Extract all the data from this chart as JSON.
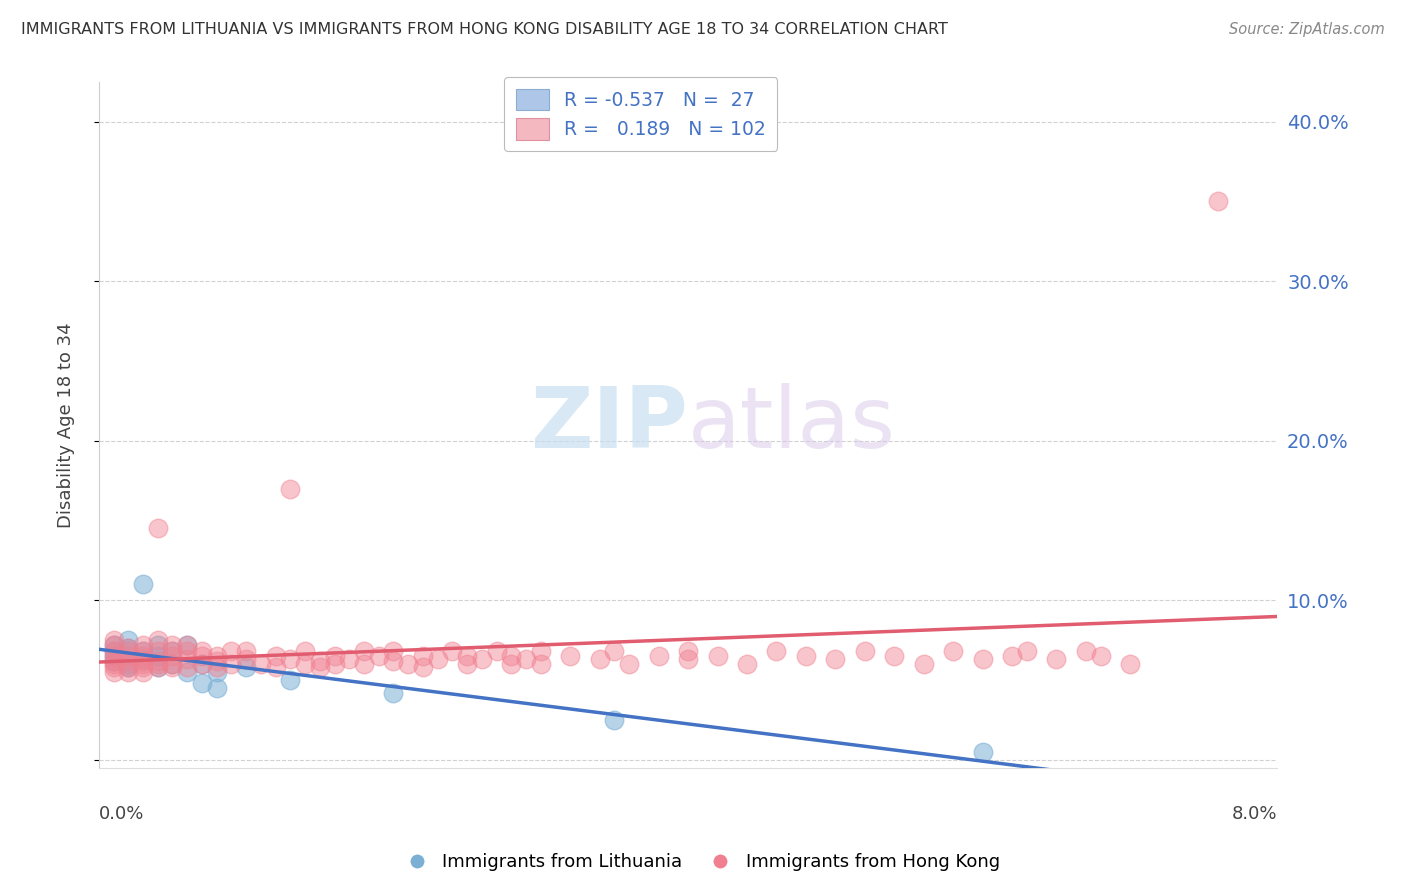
{
  "title": "IMMIGRANTS FROM LITHUANIA VS IMMIGRANTS FROM HONG KONG DISABILITY AGE 18 TO 34 CORRELATION CHART",
  "source": "Source: ZipAtlas.com",
  "ylabel": "Disability Age 18 to 34",
  "xlim": [
    0.0,
    0.08
  ],
  "ylim": [
    -0.005,
    0.425
  ],
  "yticks": [
    0.0,
    0.1,
    0.2,
    0.3,
    0.4
  ],
  "ytick_labels": [
    "",
    "10.0%",
    "20.0%",
    "30.0%",
    "40.0%"
  ],
  "legend_label1_blue": "Immigrants from Lithuania",
  "legend_label2_pink": "Immigrants from Hong Kong",
  "watermark_zip": "ZIP",
  "watermark_atlas": "atlas",
  "title_color": "#333333",
  "axis_color": "#4472c4",
  "blue_scatter_color": "#7bafd4",
  "pink_scatter_color": "#f08090",
  "blue_line_color": "#4472c4",
  "pink_line_color": "#e05c6e",
  "blue_line_dash": false,
  "pink_line_dash": false,
  "blue_points": [
    [
      0.001,
      0.072
    ],
    [
      0.001,
      0.065
    ],
    [
      0.001,
      0.062
    ],
    [
      0.001,
      0.068
    ],
    [
      0.002,
      0.07
    ],
    [
      0.002,
      0.075
    ],
    [
      0.002,
      0.06
    ],
    [
      0.002,
      0.058
    ],
    [
      0.003,
      0.11
    ],
    [
      0.003,
      0.068
    ],
    [
      0.003,
      0.063
    ],
    [
      0.004,
      0.072
    ],
    [
      0.004,
      0.065
    ],
    [
      0.004,
      0.058
    ],
    [
      0.005,
      0.06
    ],
    [
      0.005,
      0.068
    ],
    [
      0.006,
      0.055
    ],
    [
      0.006,
      0.072
    ],
    [
      0.007,
      0.06
    ],
    [
      0.007,
      0.048
    ],
    [
      0.008,
      0.045
    ],
    [
      0.008,
      0.055
    ],
    [
      0.01,
      0.058
    ],
    [
      0.013,
      0.05
    ],
    [
      0.02,
      0.042
    ],
    [
      0.035,
      0.025
    ],
    [
      0.06,
      0.005
    ]
  ],
  "pink_points": [
    [
      0.001,
      0.072
    ],
    [
      0.001,
      0.065
    ],
    [
      0.001,
      0.058
    ],
    [
      0.001,
      0.062
    ],
    [
      0.001,
      0.068
    ],
    [
      0.001,
      0.055
    ],
    [
      0.001,
      0.06
    ],
    [
      0.001,
      0.075
    ],
    [
      0.002,
      0.068
    ],
    [
      0.002,
      0.062
    ],
    [
      0.002,
      0.07
    ],
    [
      0.002,
      0.055
    ],
    [
      0.002,
      0.058
    ],
    [
      0.002,
      0.065
    ],
    [
      0.003,
      0.06
    ],
    [
      0.003,
      0.068
    ],
    [
      0.003,
      0.072
    ],
    [
      0.003,
      0.058
    ],
    [
      0.003,
      0.065
    ],
    [
      0.003,
      0.055
    ],
    [
      0.003,
      0.062
    ],
    [
      0.004,
      0.068
    ],
    [
      0.004,
      0.06
    ],
    [
      0.004,
      0.075
    ],
    [
      0.004,
      0.058
    ],
    [
      0.004,
      0.062
    ],
    [
      0.004,
      0.145
    ],
    [
      0.005,
      0.065
    ],
    [
      0.005,
      0.06
    ],
    [
      0.005,
      0.068
    ],
    [
      0.005,
      0.058
    ],
    [
      0.005,
      0.072
    ],
    [
      0.006,
      0.063
    ],
    [
      0.006,
      0.068
    ],
    [
      0.006,
      0.058
    ],
    [
      0.006,
      0.072
    ],
    [
      0.007,
      0.06
    ],
    [
      0.007,
      0.065
    ],
    [
      0.007,
      0.068
    ],
    [
      0.008,
      0.062
    ],
    [
      0.008,
      0.058
    ],
    [
      0.008,
      0.065
    ],
    [
      0.009,
      0.06
    ],
    [
      0.009,
      0.068
    ],
    [
      0.01,
      0.063
    ],
    [
      0.01,
      0.068
    ],
    [
      0.011,
      0.06
    ],
    [
      0.012,
      0.065
    ],
    [
      0.012,
      0.058
    ],
    [
      0.013,
      0.063
    ],
    [
      0.013,
      0.17
    ],
    [
      0.014,
      0.068
    ],
    [
      0.014,
      0.06
    ],
    [
      0.015,
      0.062
    ],
    [
      0.015,
      0.058
    ],
    [
      0.016,
      0.065
    ],
    [
      0.016,
      0.06
    ],
    [
      0.017,
      0.063
    ],
    [
      0.018,
      0.068
    ],
    [
      0.018,
      0.06
    ],
    [
      0.019,
      0.065
    ],
    [
      0.02,
      0.062
    ],
    [
      0.02,
      0.068
    ],
    [
      0.021,
      0.06
    ],
    [
      0.022,
      0.065
    ],
    [
      0.022,
      0.058
    ],
    [
      0.023,
      0.063
    ],
    [
      0.024,
      0.068
    ],
    [
      0.025,
      0.06
    ],
    [
      0.025,
      0.065
    ],
    [
      0.026,
      0.063
    ],
    [
      0.027,
      0.068
    ],
    [
      0.028,
      0.06
    ],
    [
      0.028,
      0.065
    ],
    [
      0.029,
      0.063
    ],
    [
      0.03,
      0.068
    ],
    [
      0.03,
      0.06
    ],
    [
      0.032,
      0.065
    ],
    [
      0.034,
      0.063
    ],
    [
      0.035,
      0.068
    ],
    [
      0.036,
      0.06
    ],
    [
      0.038,
      0.065
    ],
    [
      0.04,
      0.063
    ],
    [
      0.04,
      0.068
    ],
    [
      0.042,
      0.065
    ],
    [
      0.044,
      0.06
    ],
    [
      0.046,
      0.068
    ],
    [
      0.048,
      0.065
    ],
    [
      0.05,
      0.063
    ],
    [
      0.052,
      0.068
    ],
    [
      0.054,
      0.065
    ],
    [
      0.056,
      0.06
    ],
    [
      0.058,
      0.068
    ],
    [
      0.06,
      0.063
    ],
    [
      0.062,
      0.065
    ],
    [
      0.063,
      0.068
    ],
    [
      0.065,
      0.063
    ],
    [
      0.067,
      0.068
    ],
    [
      0.068,
      0.065
    ],
    [
      0.07,
      0.06
    ],
    [
      0.076,
      0.35
    ]
  ]
}
